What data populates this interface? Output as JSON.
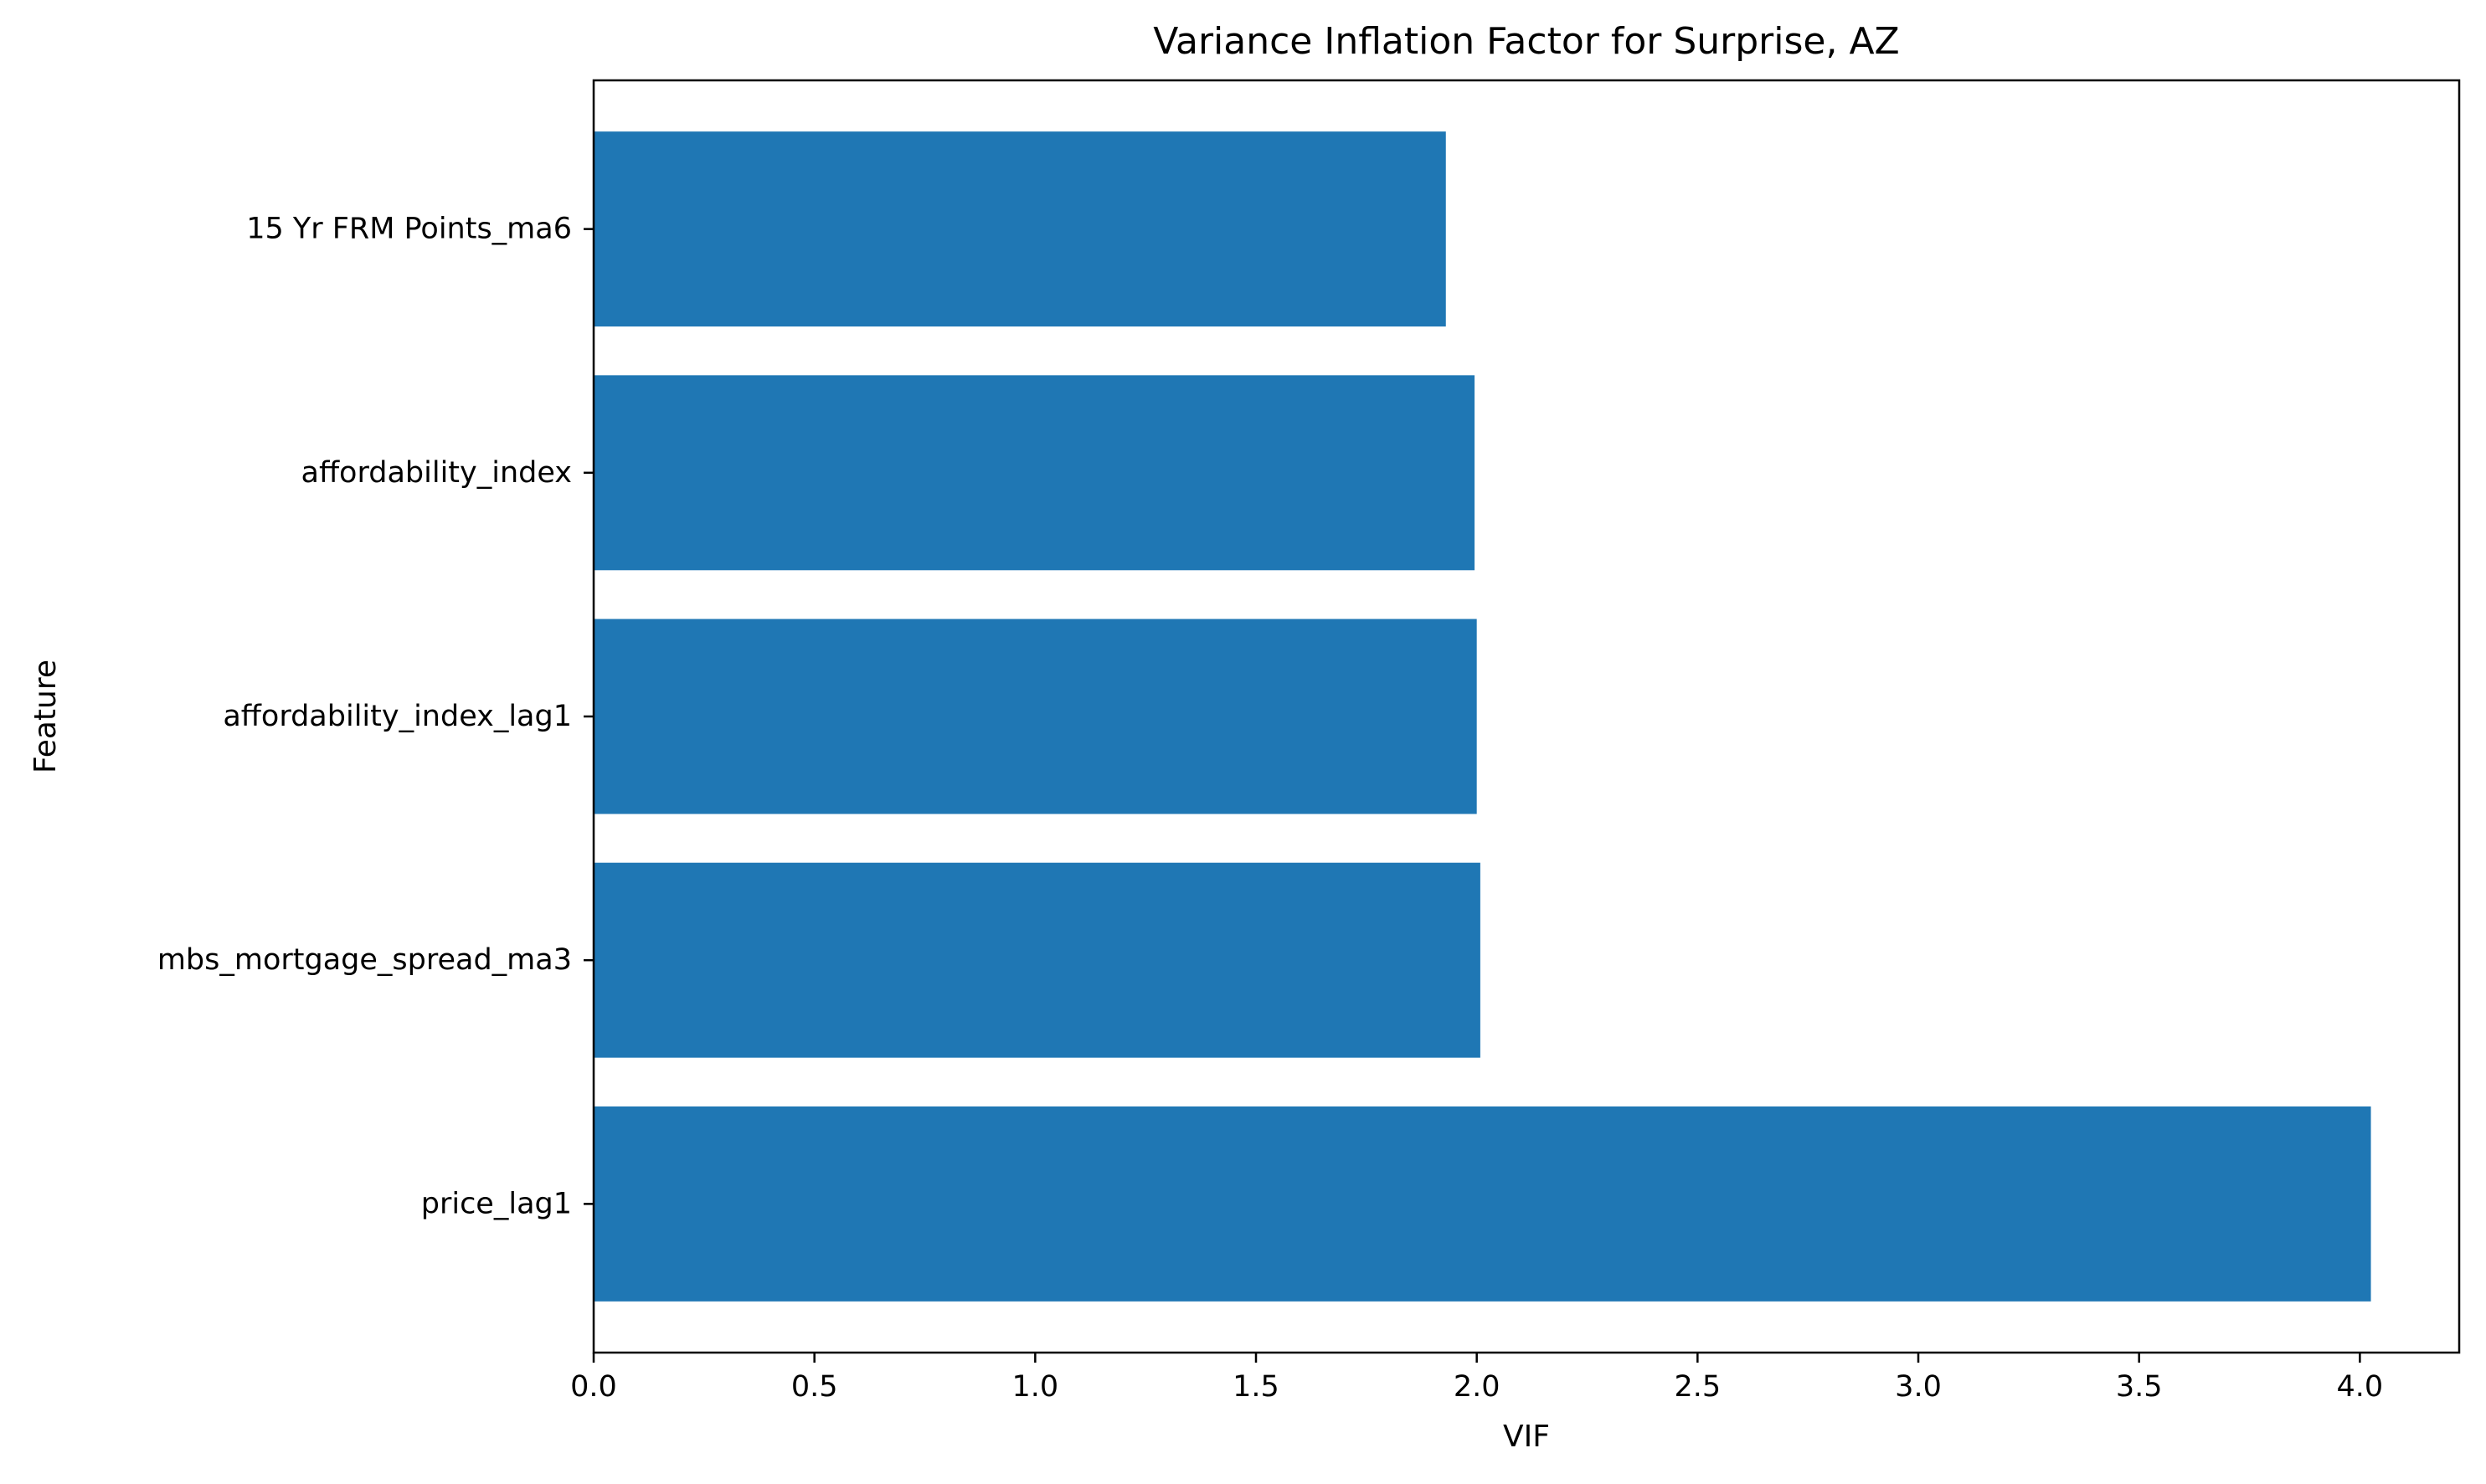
{
  "chart_data": {
    "type": "bar",
    "orientation": "horizontal",
    "title": "Variance Inflation Factor for Surprise, AZ",
    "xlabel": "VIF",
    "ylabel": "Feature",
    "categories": [
      "15 Yr FRM Points_ma6",
      "affordability_index",
      "affordability_index_lag1",
      "mbs_mortgage_spread_ma3",
      "price_lag1"
    ],
    "values": [
      1.93,
      1.995,
      2.0,
      2.008,
      4.025
    ],
    "xlim": [
      0,
      4.225
    ],
    "xticks": [
      0.0,
      0.5,
      1.0,
      1.5,
      2.0,
      2.5,
      3.0,
      3.5,
      4.0
    ],
    "xtick_labels": [
      "0.0",
      "0.5",
      "1.0",
      "1.5",
      "2.0",
      "2.5",
      "3.0",
      "3.5",
      "4.0"
    ],
    "grid": false,
    "legend": "none",
    "bar_color": "#1f77b4"
  }
}
